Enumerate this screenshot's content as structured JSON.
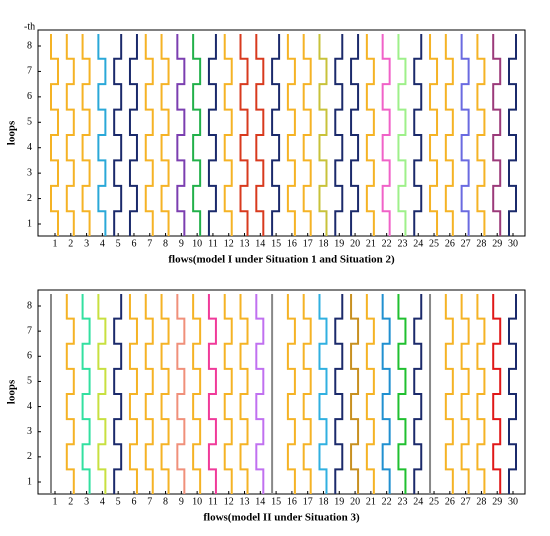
{
  "panels": [
    {
      "corner_label": "-th",
      "y_label": "loops",
      "x_label": "flows(model I under Situation 1 and Situation 2)",
      "flows": [
        1,
        2,
        3,
        4,
        5,
        6,
        7,
        8,
        9,
        10,
        11,
        12,
        13,
        14,
        15,
        16,
        17,
        18,
        19,
        20,
        21,
        22,
        23,
        24,
        25,
        26,
        27,
        28,
        29,
        30
      ],
      "loops": [
        1,
        2,
        3,
        4,
        5,
        6,
        7,
        8
      ],
      "colors": [
        "#f5b325",
        "#f5b325",
        "#f5b325",
        "#2aa8d8",
        "#1b2a6b",
        "#1b2a6b",
        "#f5b325",
        "#f5b325",
        "#7b3fb0",
        "#22b04a",
        "#1b2a6b",
        "#f5b325",
        "#d83a1e",
        "#d83a1e",
        "#1b2a6b",
        "#f5b325",
        "#f5b325",
        "#c8c23a",
        "#1b2a6b",
        "#1b2a6b",
        "#f5b325",
        "#f062c8",
        "#9ef08a",
        "#1b2a6b",
        "#f5b325",
        "#f5b325",
        "#6a6ae0",
        "#f5b325",
        "#9b3a7a",
        "#1b2a6b"
      ]
    },
    {
      "y_label": "loops",
      "x_label": "flows(model II under Situation 3)",
      "flows": [
        1,
        2,
        3,
        4,
        5,
        6,
        7,
        8,
        9,
        10,
        11,
        12,
        13,
        14,
        15,
        16,
        17,
        18,
        19,
        20,
        21,
        22,
        23,
        24,
        25,
        26,
        27,
        28,
        29,
        30
      ],
      "loops": [
        1,
        2,
        3,
        4,
        5,
        6,
        7,
        8
      ],
      "colors": [
        "#888888",
        "#f5b325",
        "#33e0a0",
        "#c8e040",
        "#1b2a6b",
        "#f5b325",
        "#f5b325",
        "#f5b325",
        "#f0907a",
        "#f5b325",
        "#f03a9a",
        "#f5b325",
        "#f5b325",
        "#c070f0",
        "#888888",
        "#f5b325",
        "#f5b325",
        "#30b0e0",
        "#1b2a6b",
        "#c89020",
        "#f5b325",
        "#2090d0",
        "#20c030",
        "#1b2a6b",
        "#888888",
        "#f5b325",
        "#f5b325",
        "#f5b325",
        "#e01818",
        "#1b2a6b"
      ]
    }
  ]
}
